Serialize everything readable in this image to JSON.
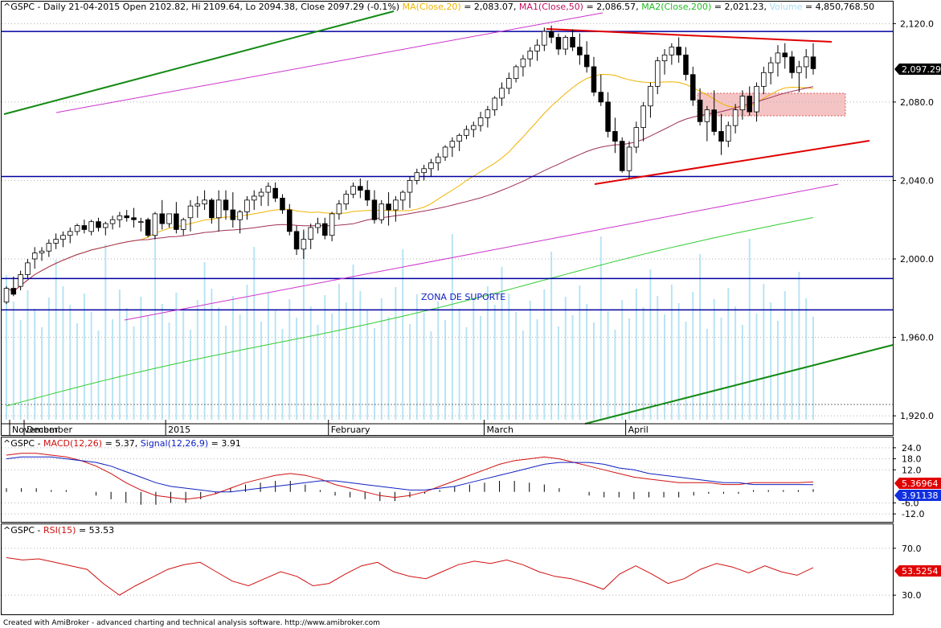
{
  "header": {
    "symbol": "^GSPC",
    "period": "Daily",
    "date": "21-04-2015",
    "open_label": "Open",
    "open": "2102.82",
    "hi_label": "Hi",
    "hi": "2109.64",
    "lo_label": "Lo",
    "lo": "2094.38",
    "close_label": "Close",
    "close": "2097.29",
    "change": "(-0.1%)",
    "ma_label": "MA(Close,20)",
    "ma_value": "= 2,083.07",
    "ma1_label": "MA1(Close,50)",
    "ma1_value": "= 2,086.57",
    "ma2_label": "MA2(Close,200)",
    "ma2_value": "= 2,021.23",
    "vol_label": "Volume",
    "vol_value": "= 4,850,768.50"
  },
  "macd_header": {
    "symbol": "^GSPC",
    "macd_label": "MACD(12,26)",
    "macd_value": "= 5.37",
    "signal_label": "Signal(12,26,9)",
    "signal_value": "= 3.91"
  },
  "rsi_header": {
    "symbol": "^GSPC",
    "rsi_label": "RSI(15)",
    "rsi_value": "= 53.53"
  },
  "annotation": "ZONA DE SUPORTE",
  "footer": "Created with AmiBroker - advanced charting and technical analysis software. http://www.amibroker.com",
  "badges": {
    "price": "2,097.29",
    "macd": "5.36964",
    "signal": "3.91138",
    "rsi": "53.5254"
  },
  "colors": {
    "up_candle": "#ffffff",
    "down_candle": "#000000",
    "ma20": "#f0b400",
    "ma50": "#a0305a",
    "ma200": "#33cc33",
    "volume": "#b8e4f4",
    "macd": "#d01010",
    "signal": "#1020c0",
    "rsi": "#d01010",
    "support": "#0000a0",
    "resistance": "#e00000",
    "trend_green": "#138a13",
    "channel": "#cc33cc",
    "zone_fill": "#f4c4c4"
  },
  "chart_data": [
    {
      "type": "candlestick",
      "title": "^GSPC - Daily",
      "x_labels": [
        "November",
        "December",
        "2015",
        "February",
        "March",
        "April"
      ],
      "y_ticks": [
        "2,120.0",
        "2,080.0",
        "2,040.0",
        "2,000.0",
        "1,960.0",
        "1,920.0"
      ],
      "ylim": [
        1918,
        2123
      ],
      "ohlc_first_date": "2014-10-29",
      "ohlc": [
        [
          1978,
          1986,
          1977,
          1985
        ],
        [
          1985,
          1991,
          1981,
          1982
        ],
        [
          1986,
          1994,
          1984,
          1992
        ],
        [
          1992,
          2000,
          1990,
          1998
        ],
        [
          2000,
          2006,
          1995,
          2003
        ],
        [
          2003,
          2006,
          1999,
          2004
        ],
        [
          2004,
          2010,
          2001,
          2008
        ],
        [
          2008,
          2013,
          2005,
          2010
        ],
        [
          2010,
          2014,
          2006,
          2012
        ],
        [
          2012,
          2016,
          2008,
          2014
        ],
        [
          2014,
          2018,
          2012,
          2017
        ],
        [
          2017,
          2020,
          2013,
          2015
        ],
        [
          2014,
          2020,
          2012,
          2019
        ],
        [
          2019,
          2021,
          2014,
          2016
        ],
        [
          2016,
          2019,
          2012,
          2018
        ],
        [
          2018,
          2022,
          2015,
          2020
        ],
        [
          2020,
          2024,
          2016,
          2022
        ],
        [
          2022,
          2025,
          2019,
          2021
        ],
        [
          2021,
          2026,
          2016,
          2020
        ],
        [
          2019,
          2021,
          2014,
          2019
        ],
        [
          2020,
          2021,
          2011,
          2012
        ],
        [
          2012,
          2024,
          2010,
          2023
        ],
        [
          2023,
          2030,
          2015,
          2018
        ],
        [
          2018,
          2023,
          2016,
          2023
        ],
        [
          2023,
          2029,
          2013,
          2015
        ],
        [
          2015,
          2021,
          2012,
          2020
        ],
        [
          2021,
          2030,
          2014,
          2027
        ],
        [
          2027,
          2032,
          2021,
          2028
        ],
        [
          2028,
          2035,
          2025,
          2030
        ],
        [
          2030,
          2031,
          2018,
          2021
        ],
        [
          2021,
          2035,
          2014,
          2030
        ],
        [
          2030,
          2035,
          2020,
          2025
        ],
        [
          2025,
          2034,
          2016,
          2020
        ],
        [
          2020,
          2025,
          2013,
          2024
        ],
        [
          2024,
          2032,
          2020,
          2030
        ],
        [
          2030,
          2035,
          2025,
          2032
        ],
        [
          2032,
          2036,
          2027,
          2034
        ],
        [
          2034,
          2039,
          2027,
          2037
        ],
        [
          2036,
          2039,
          2029,
          2031
        ],
        [
          2031,
          2033,
          2023,
          2025
        ],
        [
          2025,
          2028,
          2012,
          2014
        ],
        [
          2014,
          2017,
          2002,
          2005
        ],
        [
          2005,
          2015,
          2000,
          2010
        ],
        [
          2010,
          2018,
          2005,
          2016
        ],
        [
          2016,
          2021,
          2013,
          2018
        ],
        [
          2018,
          2021,
          2010,
          2012
        ],
        [
          2012,
          2024,
          2009,
          2023
        ],
        [
          2023,
          2030,
          2020,
          2028
        ],
        [
          2028,
          2035,
          2025,
          2033
        ],
        [
          2033,
          2039,
          2031,
          2037
        ],
        [
          2037,
          2041,
          2031,
          2035
        ],
        [
          2035,
          2040,
          2027,
          2030
        ],
        [
          2030,
          2035,
          2018,
          2020
        ],
        [
          2020,
          2030,
          2018,
          2028
        ],
        [
          2028,
          2034,
          2017,
          2025
        ],
        [
          2025,
          2032,
          2019,
          2030
        ],
        [
          2030,
          2035,
          2025,
          2034
        ],
        [
          2034,
          2042,
          2026,
          2040
        ],
        [
          2040,
          2046,
          2038,
          2044
        ],
        [
          2044,
          2048,
          2040,
          2046
        ],
        [
          2046,
          2051,
          2042,
          2049
        ],
        [
          2049,
          2054,
          2045,
          2052
        ],
        [
          2052,
          2058,
          2050,
          2057
        ],
        [
          2057,
          2062,
          2052,
          2060
        ],
        [
          2060,
          2064,
          2055,
          2063
        ],
        [
          2063,
          2068,
          2061,
          2066
        ],
        [
          2066,
          2070,
          2062,
          2068
        ],
        [
          2068,
          2075,
          2065,
          2072
        ],
        [
          2072,
          2078,
          2067,
          2076
        ],
        [
          2076,
          2083,
          2073,
          2082
        ],
        [
          2082,
          2090,
          2078,
          2087
        ],
        [
          2087,
          2095,
          2084,
          2092
        ],
        [
          2092,
          2099,
          2090,
          2098
        ],
        [
          2098,
          2104,
          2093,
          2102
        ],
        [
          2102,
          2108,
          2098,
          2106
        ],
        [
          2106,
          2112,
          2101,
          2109
        ],
        [
          2109,
          2118,
          2106,
          2116
        ],
        [
          2116,
          2119,
          2110,
          2113
        ],
        [
          2113,
          2115,
          2104,
          2107
        ],
        [
          2107,
          2114,
          2104,
          2113
        ],
        [
          2113,
          2117,
          2106,
          2108
        ],
        [
          2108,
          2115,
          2099,
          2104
        ],
        [
          2104,
          2111,
          2095,
          2098
        ],
        [
          2098,
          2103,
          2083,
          2085
        ],
        [
          2085,
          2094,
          2078,
          2080
        ],
        [
          2080,
          2085,
          2062,
          2065
        ],
        [
          2065,
          2072,
          2054,
          2060
        ],
        [
          2060,
          2062,
          2044,
          2045
        ],
        [
          2045,
          2060,
          2041,
          2057
        ],
        [
          2057,
          2070,
          2054,
          2067
        ],
        [
          2067,
          2080,
          2060,
          2078
        ],
        [
          2078,
          2090,
          2072,
          2088
        ],
        [
          2088,
          2103,
          2084,
          2101
        ],
        [
          2101,
          2107,
          2094,
          2104
        ],
        [
          2104,
          2110,
          2099,
          2108
        ],
        [
          2108,
          2113,
          2100,
          2104
        ],
        [
          2104,
          2108,
          2091,
          2094
        ],
        [
          2094,
          2098,
          2078,
          2081
        ],
        [
          2081,
          2087,
          2068,
          2070
        ],
        [
          2070,
          2078,
          2060,
          2076
        ],
        [
          2076,
          2086,
          2063,
          2065
        ],
        [
          2065,
          2074,
          2053,
          2060
        ],
        [
          2060,
          2070,
          2057,
          2068
        ],
        [
          2068,
          2079,
          2064,
          2076
        ],
        [
          2076,
          2086,
          2071,
          2083
        ],
        [
          2083,
          2088,
          2073,
          2075
        ],
        [
          2075,
          2090,
          2070,
          2088
        ],
        [
          2088,
          2098,
          2084,
          2095
        ],
        [
          2095,
          2103,
          2089,
          2100
        ],
        [
          2100,
          2109,
          2093,
          2105
        ],
        [
          2105,
          2110,
          2097,
          2103
        ],
        [
          2103,
          2106,
          2092,
          2095
        ],
        [
          2095,
          2101,
          2085,
          2098
        ],
        [
          2098,
          2107,
          2092,
          2103
        ],
        [
          2103,
          2110,
          2094,
          2097
        ]
      ],
      "horizontal_lines": [
        2116,
        1990,
        1974,
        2042
      ],
      "series": [
        {
          "name": "MA(Close,20)",
          "last": 2083.07
        },
        {
          "name": "MA1(Close,50)",
          "last": 2086.57
        },
        {
          "name": "MA2(Close,200)",
          "last": 2021.23
        },
        {
          "name": "Volume",
          "last": 4850768.5
        }
      ]
    },
    {
      "type": "line",
      "title": "^GSPC - MACD(12,26)",
      "y_ticks": [
        "24.0",
        "18.0",
        "12.0",
        "-6.0",
        "-12.0"
      ],
      "ylim": [
        -15,
        27
      ],
      "series": [
        {
          "name": "MACD(12,26)",
          "values": [
            20,
            21,
            21,
            20,
            19,
            17,
            14,
            10,
            5,
            1,
            -2,
            -3,
            -4,
            -3,
            -1,
            2,
            5,
            7,
            9,
            10,
            9,
            7,
            4,
            2,
            0,
            -2,
            -3,
            -2,
            0,
            3,
            6,
            9,
            12,
            15,
            17,
            18,
            19,
            18,
            16,
            14,
            12,
            10,
            8,
            7,
            6,
            5,
            5,
            5,
            4,
            4,
            5,
            5,
            5,
            5,
            5.37
          ]
        },
        {
          "name": "Signal(12,26,9)",
          "values": [
            18,
            19,
            19,
            19,
            18,
            17,
            16,
            14,
            11,
            8,
            5,
            3,
            2,
            1,
            0,
            0,
            1,
            2,
            3,
            4,
            5,
            6,
            6,
            5,
            4,
            3,
            2,
            1,
            1,
            2,
            3,
            5,
            7,
            9,
            11,
            13,
            15,
            16,
            16,
            16,
            15,
            13,
            12,
            10,
            9,
            8,
            7,
            6,
            5,
            5,
            4,
            4,
            4,
            4,
            3.91
          ]
        }
      ]
    },
    {
      "type": "line",
      "title": "^GSPC - RSI(15)",
      "y_ticks": [
        "70.0",
        "30.0"
      ],
      "ylim": [
        15,
        85
      ],
      "series": [
        {
          "name": "RSI(15)",
          "values": [
            62,
            60,
            61,
            58,
            55,
            52,
            40,
            30,
            38,
            45,
            52,
            56,
            58,
            50,
            42,
            38,
            44,
            50,
            46,
            38,
            40,
            48,
            55,
            58,
            50,
            46,
            44,
            50,
            56,
            59,
            57,
            60,
            56,
            50,
            46,
            44,
            40,
            35,
            48,
            55,
            48,
            40,
            44,
            52,
            57,
            54,
            49,
            55,
            50,
            47,
            53.53
          ]
        }
      ]
    }
  ]
}
